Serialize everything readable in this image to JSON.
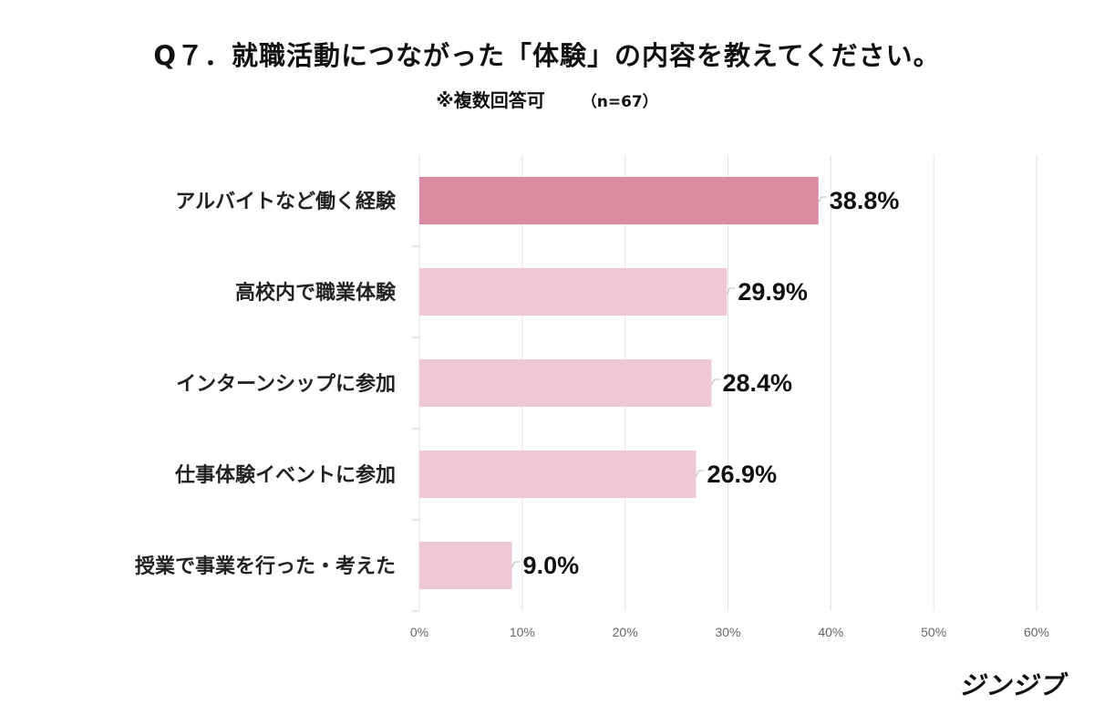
{
  "chart_data": {
    "type": "bar",
    "orientation": "horizontal",
    "title": "Q７．就職活動につながった「体験」の内容を教えてください。",
    "subtitle": "※複数回答可",
    "sample_size": "（n=67）",
    "categories": [
      "アルバイトなど働く経験",
      "高校内で職業体験",
      "インターンシップに参加",
      "仕事体験イベントに参加",
      "授業で事業を行った・考えた"
    ],
    "values": [
      38.8,
      29.9,
      28.4,
      26.9,
      9.0
    ],
    "data_labels": [
      "38.8%",
      "29.9%",
      "28.4%",
      "26.9%",
      "9.0%"
    ],
    "xlim": [
      0,
      60
    ],
    "xticks": [
      "0%",
      "10%",
      "20%",
      "30%",
      "40%",
      "50%",
      "60%"
    ],
    "grid": true,
    "colors": {
      "highlight": "#d98ba2",
      "default": "#f0c8d4",
      "grid": "#e3e3e3"
    }
  },
  "logo": "ジンジブ"
}
